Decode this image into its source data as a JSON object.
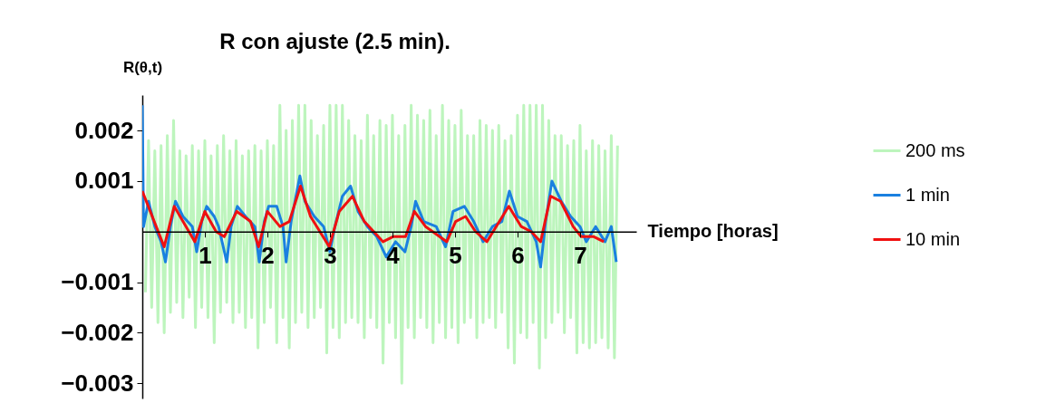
{
  "chart_data": {
    "type": "line",
    "title": "R con  ajuste (2.5 min).",
    "xlabel": "Tiempo [horas]",
    "ylabel": "R(θ,t)",
    "xlim": [
      0,
      7.9
    ],
    "ylim": [
      -0.0033,
      0.0027
    ],
    "xticks": [
      1,
      2,
      3,
      4,
      5,
      6,
      7
    ],
    "yticks": [
      {
        "value": -0.003,
        "label": "−0.003"
      },
      {
        "value": -0.002,
        "label": "−0.002"
      },
      {
        "value": -0.001,
        "label": "−0.001"
      },
      {
        "value": 0.001,
        "label": "0.001"
      },
      {
        "value": 0.002,
        "label": "0.002"
      }
    ],
    "legend": "right",
    "series": [
      {
        "name": "200 ms",
        "color": "#bdf5bd",
        "x": [
          0.05,
          0.1,
          0.15,
          0.2,
          0.25,
          0.3,
          0.35,
          0.4,
          0.45,
          0.5,
          0.55,
          0.6,
          0.65,
          0.7,
          0.75,
          0.8,
          0.85,
          0.9,
          0.95,
          1.0,
          1.05,
          1.1,
          1.15,
          1.2,
          1.25,
          1.3,
          1.35,
          1.4,
          1.45,
          1.5,
          1.55,
          1.6,
          1.65,
          1.7,
          1.75,
          1.8,
          1.85,
          1.9,
          1.95,
          2.0,
          2.05,
          2.1,
          2.15,
          2.2,
          2.25,
          2.3,
          2.35,
          2.4,
          2.45,
          2.5,
          2.55,
          2.6,
          2.65,
          2.7,
          2.75,
          2.8,
          2.85,
          2.9,
          2.95,
          3.0,
          3.05,
          3.1,
          3.15,
          3.2,
          3.25,
          3.3,
          3.35,
          3.4,
          3.45,
          3.5,
          3.55,
          3.6,
          3.65,
          3.7,
          3.75,
          3.8,
          3.85,
          3.9,
          3.95,
          4.0,
          4.05,
          4.1,
          4.15,
          4.2,
          4.25,
          4.3,
          4.35,
          4.4,
          4.45,
          4.5,
          4.55,
          4.6,
          4.65,
          4.7,
          4.75,
          4.8,
          4.85,
          4.9,
          4.95,
          5.0,
          5.05,
          5.1,
          5.15,
          5.2,
          5.25,
          5.3,
          5.35,
          5.4,
          5.45,
          5.5,
          5.55,
          5.6,
          5.65,
          5.7,
          5.75,
          5.8,
          5.85,
          5.9,
          5.95,
          6.0,
          6.05,
          6.1,
          6.15,
          6.2,
          6.25,
          6.3,
          6.35,
          6.4,
          6.45,
          6.5,
          6.55,
          6.6,
          6.65,
          6.7,
          6.75,
          6.8,
          6.85,
          6.9,
          6.95,
          7.0,
          7.05,
          7.1,
          7.15,
          7.2,
          7.25,
          7.3,
          7.35,
          7.4,
          7.45,
          7.5,
          7.55,
          7.6
        ],
        "values": [
          -0.0012,
          0.0018,
          -0.0015,
          0.0016,
          -0.0018,
          0.0017,
          -0.002,
          0.0019,
          -0.0016,
          0.0022,
          -0.0014,
          0.0016,
          -0.0017,
          0.0015,
          -0.0013,
          0.0017,
          -0.0019,
          0.0016,
          -0.0015,
          0.0018,
          -0.0017,
          0.0015,
          -0.0022,
          0.0017,
          -0.0016,
          0.0019,
          -0.0014,
          0.0016,
          -0.0018,
          0.0018,
          -0.0016,
          0.0015,
          -0.0019,
          0.0016,
          -0.0017,
          0.0017,
          -0.0023,
          0.0016,
          -0.0018,
          0.0018,
          -0.0015,
          0.0017,
          -0.0022,
          0.0025,
          -0.0017,
          0.002,
          -0.0023,
          0.0022,
          -0.0018,
          0.0025,
          -0.0016,
          0.0025,
          -0.0019,
          0.0022,
          -0.0017,
          0.0019,
          -0.0015,
          0.0021,
          -0.0024,
          0.0025,
          -0.0019,
          0.0025,
          -0.0021,
          0.0025,
          -0.0018,
          0.0022,
          -0.0017,
          0.0019,
          -0.0018,
          0.0018,
          -0.0021,
          0.0023,
          -0.0017,
          0.0019,
          -0.0019,
          0.0022,
          -0.0026,
          0.0021,
          -0.0018,
          0.0023,
          -0.0021,
          0.0019,
          -0.003,
          0.0021,
          -0.0019,
          0.0025,
          -0.0021,
          0.0023,
          -0.0017,
          0.0022,
          -0.0019,
          0.0024,
          -0.0022,
          0.0019,
          -0.0018,
          0.0025,
          -0.0021,
          0.0022,
          -0.0019,
          0.0021,
          -0.0022,
          0.0024,
          -0.0018,
          0.0019,
          -0.0017,
          0.0019,
          -0.0021,
          0.0022,
          -0.0018,
          0.0021,
          -0.0017,
          0.002,
          -0.0019,
          0.0021,
          -0.0016,
          0.0018,
          -0.0023,
          0.0019,
          -0.0026,
          0.0023,
          -0.002,
          0.0025,
          -0.0021,
          0.0025,
          -0.0018,
          0.0025,
          -0.0027,
          0.0025,
          -0.0021,
          0.0022,
          -0.0018,
          0.0019,
          -0.0016,
          0.0019,
          -0.002,
          0.0017,
          -0.0017,
          0.0018,
          -0.0024,
          0.0021,
          -0.0022,
          0.0016,
          -0.0023,
          0.0018,
          -0.0022,
          0.0017,
          -0.0021,
          0.0016,
          -0.0023,
          0.0019,
          -0.0025,
          0.0017
        ]
      },
      {
        "name": "1 min",
        "color": "#1a80e0",
        "x": [
          0,
          0.02,
          0.1,
          0.2,
          0.3,
          0.37,
          0.45,
          0.53,
          0.65,
          0.8,
          0.87,
          0.95,
          1.03,
          1.15,
          1.22,
          1.35,
          1.42,
          1.52,
          1.65,
          1.8,
          1.87,
          1.95,
          2.02,
          2.15,
          2.25,
          2.3,
          2.38,
          2.52,
          2.6,
          2.75,
          2.9,
          3.0,
          3.08,
          3.2,
          3.33,
          3.45,
          3.6,
          3.75,
          3.9,
          4.05,
          4.2,
          4.3,
          4.37,
          4.5,
          4.7,
          4.85,
          4.97,
          5.15,
          5.3,
          5.45,
          5.6,
          5.75,
          5.87,
          6.0,
          6.15,
          6.3,
          6.37,
          6.45,
          6.55,
          6.7,
          6.85,
          7.0,
          7.1,
          7.25,
          7.4,
          7.5,
          7.58
        ],
        "values": [
          0.0025,
          0.0001,
          0.0006,
          0.0001,
          -0.0002,
          -0.0006,
          0.0001,
          0.0006,
          0.0003,
          0.0001,
          -0.0004,
          0.0002,
          0.0005,
          0.0003,
          0.0001,
          -0.0006,
          0.0001,
          0.0005,
          0.0003,
          0.0001,
          -0.0006,
          0.0002,
          0.0005,
          0.0005,
          0.0001,
          -0.0006,
          0.0002,
          0.0011,
          0.0006,
          0.0003,
          0.0001,
          -0.0004,
          0.0001,
          0.0007,
          0.0009,
          0.0004,
          0.0001,
          -0.0001,
          -0.0005,
          -0.0002,
          -0.0004,
          0.0001,
          0.0006,
          0.0002,
          0.0001,
          -0.0003,
          0.0004,
          0.0005,
          0.0002,
          -0.0002,
          0.0001,
          0.0002,
          0.0008,
          0.0003,
          0.0002,
          -0.0002,
          -0.0007,
          0.0002,
          0.001,
          0.0006,
          0.0003,
          0.0001,
          -0.0002,
          0.0001,
          -0.0002,
          0.0001,
          -0.0006
        ]
      },
      {
        "name": "10 min",
        "color": "#f01010",
        "x": [
          0,
          0.35,
          0.51,
          0.84,
          1.0,
          1.18,
          1.31,
          1.51,
          1.73,
          1.86,
          2.0,
          2.2,
          2.35,
          2.53,
          2.69,
          2.99,
          3.15,
          3.36,
          3.55,
          3.85,
          4.01,
          4.21,
          4.35,
          4.53,
          4.87,
          5.01,
          5.17,
          5.33,
          5.51,
          5.86,
          6.06,
          6.22,
          6.37,
          6.53,
          6.69,
          6.89,
          7.02,
          7.22,
          7.38
        ],
        "values": [
          0.0008,
          -0.0003,
          0.0005,
          -0.0002,
          0.0004,
          0,
          -0.0001,
          0.0004,
          0.0002,
          -0.0003,
          0.0004,
          0.0001,
          0.0002,
          0.0009,
          0.0003,
          -0.0003,
          0.0004,
          0.0007,
          0.0002,
          -0.0002,
          -0.0001,
          -0.0001,
          0.0004,
          0.0001,
          -0.0002,
          0.0002,
          0.0003,
          0,
          -0.0002,
          0.0005,
          0.0001,
          0,
          -0.0002,
          0.0007,
          0.0006,
          0.0001,
          -0.0001,
          -0.0001,
          -0.0002
        ]
      }
    ]
  }
}
